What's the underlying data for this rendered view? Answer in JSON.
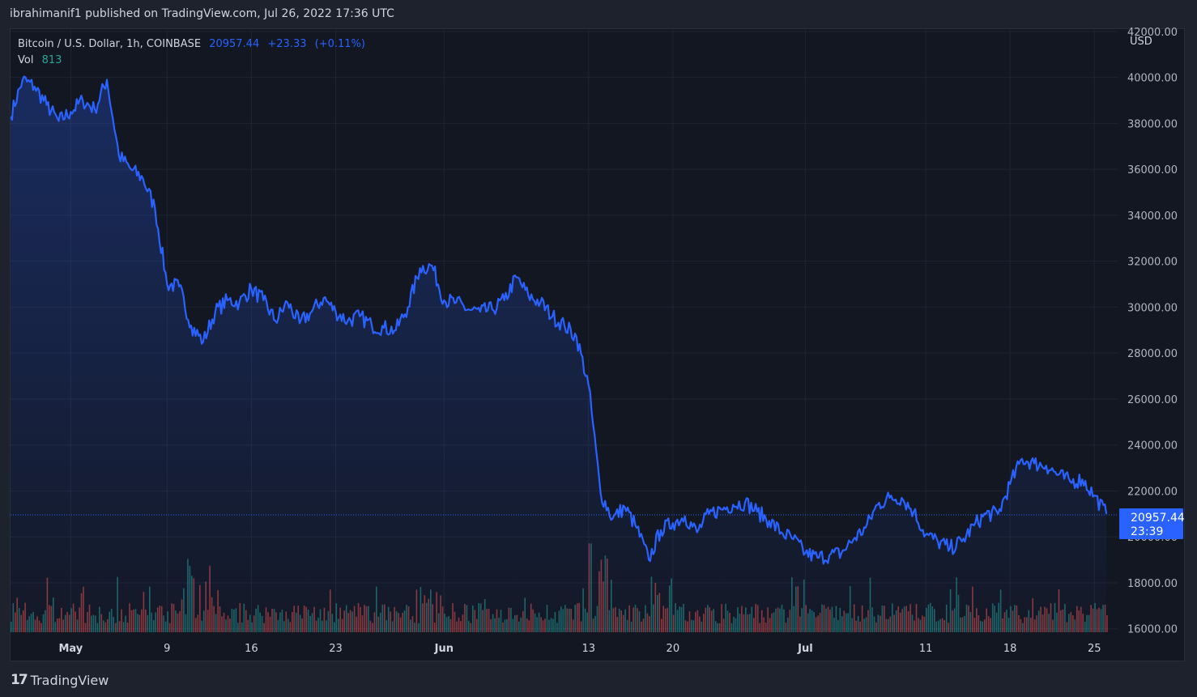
{
  "publisher": {
    "author": "ibrahimanif1",
    "middle": "published on",
    "site": "TradingView.com,",
    "date": "Jul 26, 2022 17:36 UTC"
  },
  "legend": {
    "symbol": "Bitcoin / U.S. Dollar, 1h, COINBASE",
    "last": "20957.44",
    "change": "+23.33",
    "change_pct": "(+0.11%)",
    "vol_label": "Vol",
    "vol_value": "813"
  },
  "price_badge": {
    "value": "20957.44",
    "countdown": "23:39"
  },
  "footer": {
    "logo": "TradingView"
  },
  "colors": {
    "line": "#2962ff",
    "up": "#26a69a",
    "down": "#ef5350",
    "grid": "#1f2433",
    "text": "#b2b5be",
    "badge": "#2962ff"
  },
  "chart_data": {
    "type": "area",
    "ylabel": "USD",
    "ylim": [
      15850,
      42100
    ],
    "yticks": [
      16000,
      18000,
      20000,
      22000,
      24000,
      26000,
      28000,
      30000,
      32000,
      34000,
      36000,
      38000,
      40000,
      42000
    ],
    "ytick_labels": [
      "16000.00",
      "18000.00",
      "20000.00",
      "22000.00",
      "24000.00",
      "26000.00",
      "28000.00",
      "30000.00",
      "32000.00",
      "34000.00",
      "36000.00",
      "38000.00",
      "40000.00",
      "42000.00"
    ],
    "xlim": [
      "2022-04-26",
      "2022-07-27"
    ],
    "xticks": [
      {
        "date": "2022-05-01",
        "label": "May",
        "bold": true
      },
      {
        "date": "2022-05-09",
        "label": "9",
        "bold": false
      },
      {
        "date": "2022-05-16",
        "label": "16",
        "bold": false
      },
      {
        "date": "2022-05-23",
        "label": "23",
        "bold": false
      },
      {
        "date": "2022-06-01",
        "label": "Jun",
        "bold": true
      },
      {
        "date": "2022-06-13",
        "label": "13",
        "bold": false
      },
      {
        "date": "2022-06-20",
        "label": "20",
        "bold": false
      },
      {
        "date": "2022-07-01",
        "label": "Jul",
        "bold": true
      },
      {
        "date": "2022-07-11",
        "label": "11",
        "bold": false
      },
      {
        "date": "2022-07-18",
        "label": "18",
        "bold": false
      },
      {
        "date": "2022-07-25",
        "label": "25",
        "bold": false
      }
    ],
    "last_price": 20957.44,
    "series": [
      {
        "x": [
          "2022-04-26",
          "2022-04-27",
          "2022-04-28",
          "2022-04-29",
          "2022-04-30",
          "2022-05-01",
          "2022-05-02",
          "2022-05-03",
          "2022-05-04",
          "2022-05-05",
          "2022-05-06",
          "2022-05-07",
          "2022-05-08",
          "2022-05-09",
          "2022-05-10",
          "2022-05-11",
          "2022-05-12",
          "2022-05-13",
          "2022-05-14",
          "2022-05-15",
          "2022-05-16",
          "2022-05-17",
          "2022-05-18",
          "2022-05-19",
          "2022-05-20",
          "2022-05-21",
          "2022-05-22",
          "2022-05-23",
          "2022-05-24",
          "2022-05-25",
          "2022-05-26",
          "2022-05-27",
          "2022-05-28",
          "2022-05-29",
          "2022-05-30",
          "2022-05-31",
          "2022-06-01",
          "2022-06-02",
          "2022-06-03",
          "2022-06-04",
          "2022-06-05",
          "2022-06-06",
          "2022-06-07",
          "2022-06-08",
          "2022-06-09",
          "2022-06-10",
          "2022-06-11",
          "2022-06-12",
          "2022-06-13",
          "2022-06-14",
          "2022-06-15",
          "2022-06-16",
          "2022-06-17",
          "2022-06-18",
          "2022-06-19",
          "2022-06-20",
          "2022-06-21",
          "2022-06-22",
          "2022-06-23",
          "2022-06-24",
          "2022-06-25",
          "2022-06-26",
          "2022-06-27",
          "2022-06-28",
          "2022-06-29",
          "2022-06-30",
          "2022-07-01",
          "2022-07-02",
          "2022-07-03",
          "2022-07-04",
          "2022-07-05",
          "2022-07-06",
          "2022-07-07",
          "2022-07-08",
          "2022-07-09",
          "2022-07-10",
          "2022-07-11",
          "2022-07-12",
          "2022-07-13",
          "2022-07-14",
          "2022-07-15",
          "2022-07-16",
          "2022-07-17",
          "2022-07-18",
          "2022-07-19",
          "2022-07-20",
          "2022-07-21",
          "2022-07-22",
          "2022-07-23",
          "2022-07-24",
          "2022-07-25",
          "2022-07-26"
        ],
        "values": [
          38300,
          39900,
          39600,
          38800,
          38100,
          38500,
          39000,
          38600,
          39900,
          36600,
          36000,
          35600,
          34300,
          31000,
          30900,
          29200,
          28500,
          29800,
          30300,
          30200,
          30800,
          30300,
          29400,
          30200,
          29300,
          29800,
          30400,
          29800,
          29400,
          29600,
          29200,
          29100,
          29000,
          30000,
          31700,
          31800,
          30300,
          30200,
          29900,
          29800,
          29900,
          30300,
          31300,
          30500,
          30200,
          29600,
          29200,
          28700,
          26600,
          21900,
          20800,
          21300,
          20400,
          19000,
          20300,
          20600,
          20900,
          20200,
          21000,
          21200,
          21400,
          21500,
          21100,
          20700,
          20200,
          19900,
          19300,
          19100,
          19200,
          19300,
          19900,
          20400,
          21400,
          21700,
          21700,
          21100,
          20100,
          19800,
          19500,
          19800,
          20500,
          21000,
          21000,
          22300,
          23400,
          23200,
          23100,
          22700,
          22400,
          22500,
          21800,
          21000
        ]
      }
    ],
    "volume": {
      "peaks": [
        {
          "date": "2022-05-10",
          "rel": 0.7
        },
        {
          "date": "2022-05-11",
          "rel": 0.62
        },
        {
          "date": "2022-05-12",
          "rel": 0.78
        },
        {
          "date": "2022-05-13",
          "rel": 0.5
        },
        {
          "date": "2022-05-30",
          "rel": 0.46
        },
        {
          "date": "2022-06-13",
          "rel": 0.85
        },
        {
          "date": "2022-06-14",
          "rel": 0.7
        },
        {
          "date": "2022-06-18",
          "rel": 0.58
        },
        {
          "date": "2022-06-30",
          "rel": 0.52
        },
        {
          "date": "2022-07-13",
          "rel": 0.55
        },
        {
          "date": "2022-07-19",
          "rel": 0.48
        }
      ]
    }
  }
}
